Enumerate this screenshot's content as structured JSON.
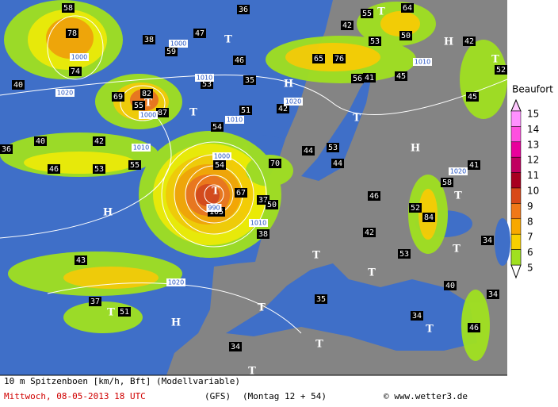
{
  "map": {
    "gust_labels": [
      58,
      78,
      38,
      59,
      47,
      36,
      55,
      64,
      42,
      53,
      50,
      42,
      74,
      40,
      69,
      82,
      55,
      87,
      53,
      46,
      35,
      65,
      76,
      56,
      41,
      45,
      45,
      52,
      51,
      42,
      54,
      40,
      42,
      36,
      46,
      53,
      55,
      44,
      53,
      54,
      70,
      44,
      41,
      58,
      67,
      37,
      50,
      46,
      52,
      84,
      105,
      38,
      42,
      53,
      34,
      43,
      40,
      34,
      37,
      51,
      35,
      34,
      46,
      34
    ],
    "pressure_system_labels": [
      "T",
      "H",
      "T",
      "T",
      "H",
      "T",
      "T",
      "T",
      "H",
      "T",
      "H",
      "T",
      "T",
      "T",
      "T",
      "T",
      "T",
      "H",
      "T",
      "T",
      "T"
    ],
    "isobar_labels": [
      1000,
      1000,
      1010,
      1020,
      1000,
      1010,
      1010,
      1020,
      1010,
      1000,
      990,
      1010,
      1020,
      1020
    ]
  },
  "legend": {
    "title": "Beaufort",
    "levels": [
      {
        "label": 15,
        "color": "#ff90ff"
      },
      {
        "label": 14,
        "color": "#ff50e0"
      },
      {
        "label": 13,
        "color": "#e8009c"
      },
      {
        "label": 12,
        "color": "#c00060"
      },
      {
        "label": 11,
        "color": "#a80020"
      },
      {
        "label": 10,
        "color": "#d84818"
      },
      {
        "label": 9,
        "color": "#f07818"
      },
      {
        "label": 8,
        "color": "#f8a800"
      },
      {
        "label": 7,
        "color": "#f8d000"
      },
      {
        "label": 6,
        "color": "#f0f000"
      },
      {
        "label": 5,
        "color": "#a0e020"
      }
    ]
  },
  "caption": {
    "line1": "10 m Spitzenboen [km/h, Bft] (Modellvariable)",
    "date": "Mittwoch, 08-05-2013  18 UTC",
    "model": "(GFS)",
    "run": "(Montag 12 + 54)",
    "copyright": "© www.wetter3.de"
  }
}
